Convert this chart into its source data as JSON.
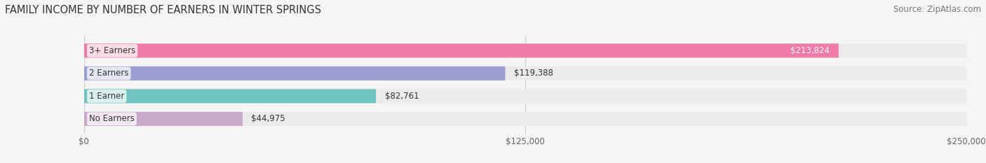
{
  "title": "FAMILY INCOME BY NUMBER OF EARNERS IN WINTER SPRINGS",
  "source": "Source: ZipAtlas.com",
  "categories": [
    "No Earners",
    "1 Earner",
    "2 Earners",
    "3+ Earners"
  ],
  "values": [
    44975,
    82761,
    119388,
    213824
  ],
  "bar_colors": [
    "#c9a8c8",
    "#6ec4c0",
    "#9b9fd4",
    "#f07aa8"
  ],
  "bar_bg_color": "#ebebeb",
  "label_colors": [
    "#333333",
    "#333333",
    "#333333",
    "#ffffff"
  ],
  "value_labels": [
    "$44,975",
    "$82,761",
    "$119,388",
    "$213,824"
  ],
  "xlim": [
    0,
    250000
  ],
  "xticks": [
    0,
    125000,
    250000
  ],
  "xtick_labels": [
    "$0",
    "$125,000",
    "$250,000"
  ],
  "title_fontsize": 10.5,
  "source_fontsize": 8.5,
  "bar_height": 0.62,
  "background_color": "#f5f5f5"
}
